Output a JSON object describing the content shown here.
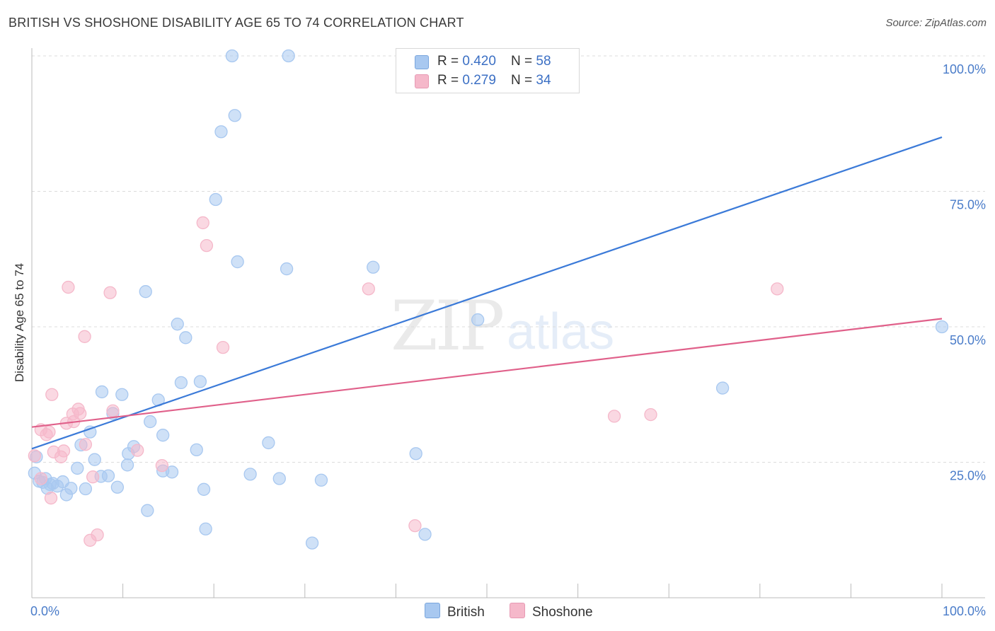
{
  "title": "BRITISH VS SHOSHONE DISABILITY AGE 65 TO 74 CORRELATION CHART",
  "source": "Source: ZipAtlas.com",
  "watermark": {
    "zip": "ZIP",
    "atlas": "atlas"
  },
  "legend": {
    "rows": [
      {
        "r_label": "R = ",
        "r_value": "0.420",
        "n_label": "N = ",
        "n_value": "58",
        "color": "#a8c8f0"
      },
      {
        "r_label": "R = ",
        "r_value": "0.279",
        "n_label": "N = ",
        "n_value": "34",
        "color": "#f5b8ca"
      }
    ]
  },
  "bottom_legend": [
    {
      "label": "British",
      "color": "#a8c8f0"
    },
    {
      "label": "Shoshone",
      "color": "#f5b8ca"
    }
  ],
  "chart_data": {
    "type": "scatter",
    "title": "BRITISH VS SHOSHONE DISABILITY AGE 65 TO 74 CORRELATION CHART",
    "xlabel": "",
    "ylabel": "Disability Age 65 to 74",
    "xlim": [
      0,
      100
    ],
    "ylim": [
      0,
      100
    ],
    "x_tick_labels": [
      "0.0%",
      "100.0%"
    ],
    "y_tick_labels": [
      "100.0%",
      "75.0%",
      "50.0%",
      "25.0%"
    ],
    "y_ticks": [
      100,
      75,
      50,
      25
    ],
    "grid": "horizontal dashed",
    "legend_position": "top-center",
    "series": [
      {
        "name": "British",
        "color": "#3b7ad8",
        "fill": "#a8c8f0",
        "trend": [
          [
            0,
            27.5
          ],
          [
            100,
            85
          ]
        ],
        "points": [
          [
            22,
            100
          ],
          [
            28.2,
            100
          ],
          [
            22.3,
            89
          ],
          [
            20.8,
            86
          ],
          [
            20.2,
            73.5
          ],
          [
            22.6,
            62
          ],
          [
            28,
            60.7
          ],
          [
            37.5,
            61
          ],
          [
            12.5,
            56.5
          ],
          [
            49,
            51.3
          ],
          [
            100,
            50
          ],
          [
            16,
            50.5
          ],
          [
            16.9,
            48
          ],
          [
            7.7,
            38
          ],
          [
            9.9,
            37.5
          ],
          [
            16.4,
            39.7
          ],
          [
            18.5,
            39.9
          ],
          [
            13.9,
            36.5
          ],
          [
            8.9,
            34
          ],
          [
            75.9,
            38.7
          ],
          [
            13,
            32.5
          ],
          [
            14.4,
            30
          ],
          [
            6.4,
            30.6
          ],
          [
            5.4,
            28.2
          ],
          [
            11.2,
            27.9
          ],
          [
            10.6,
            26.6
          ],
          [
            18.1,
            27.3
          ],
          [
            26,
            28.6
          ],
          [
            42.2,
            26.6
          ],
          [
            6.9,
            25.5
          ],
          [
            10.5,
            24.5
          ],
          [
            5,
            23.9
          ],
          [
            8.4,
            22.5
          ],
          [
            15.4,
            23.2
          ],
          [
            14.4,
            23.4
          ],
          [
            7.6,
            22.4
          ],
          [
            0.5,
            26
          ],
          [
            0.3,
            23
          ],
          [
            1.2,
            21.3
          ],
          [
            3.4,
            21.4
          ],
          [
            2.3,
            21.1
          ],
          [
            2.8,
            20.6
          ],
          [
            1.7,
            20.2
          ],
          [
            4.3,
            20.2
          ],
          [
            5.9,
            20.1
          ],
          [
            9.4,
            20.4
          ],
          [
            18.9,
            20
          ],
          [
            27.2,
            22
          ],
          [
            31.8,
            21.7
          ],
          [
            3.8,
            19
          ],
          [
            12.7,
            16.1
          ],
          [
            19.1,
            12.7
          ],
          [
            30.8,
            10.1
          ],
          [
            43.2,
            11.7
          ],
          [
            0.8,
            21.5
          ],
          [
            1.5,
            22
          ],
          [
            2,
            20.9
          ],
          [
            24,
            22.8
          ]
        ]
      },
      {
        "name": "Shoshone",
        "color": "#e0608a",
        "fill": "#f5b8ca",
        "trend": [
          [
            0,
            31.5
          ],
          [
            100,
            51.5
          ]
        ],
        "points": [
          [
            47.8,
            100
          ],
          [
            18.8,
            69.2
          ],
          [
            19.2,
            65
          ],
          [
            4,
            57.3
          ],
          [
            8.6,
            56.3
          ],
          [
            37,
            57
          ],
          [
            81.9,
            57
          ],
          [
            21,
            46.2
          ],
          [
            5.8,
            48.2
          ],
          [
            2.2,
            37.5
          ],
          [
            5.1,
            34.8
          ],
          [
            8.9,
            34.5
          ],
          [
            5.3,
            34
          ],
          [
            4.5,
            33.9
          ],
          [
            3.8,
            32.2
          ],
          [
            4.6,
            32.5
          ],
          [
            64,
            33.5
          ],
          [
            68,
            33.8
          ],
          [
            1,
            31
          ],
          [
            1.9,
            30.6
          ],
          [
            1.6,
            30.1
          ],
          [
            5.9,
            28.3
          ],
          [
            3.5,
            27.1
          ],
          [
            2.4,
            26.9
          ],
          [
            3.2,
            26
          ],
          [
            11.6,
            27.2
          ],
          [
            0.3,
            26.2
          ],
          [
            14.3,
            24.4
          ],
          [
            6.7,
            22.3
          ],
          [
            1,
            22
          ],
          [
            2.1,
            18.4
          ],
          [
            42.1,
            13.3
          ],
          [
            7.2,
            11.6
          ],
          [
            6.4,
            10.6
          ]
        ]
      }
    ]
  }
}
